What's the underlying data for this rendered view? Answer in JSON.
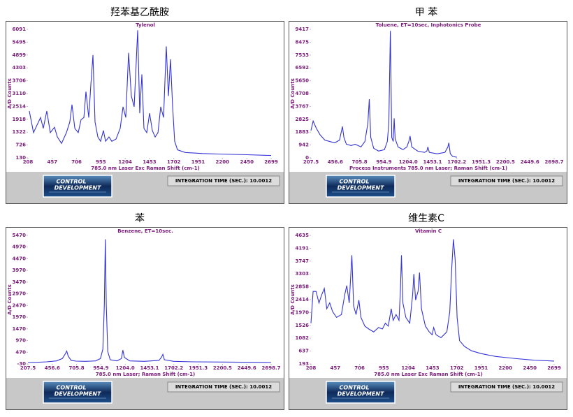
{
  "chart_data": [
    {
      "type": "line",
      "heading": "羟苯基乙酰胺",
      "title": "Tylenol",
      "ylabel": "A/D Counts",
      "xlabel": "785.0 nm Laser Exc    Raman Shift (cm-1)",
      "logo": [
        "CONTROL",
        "DEVELOPMENT"
      ],
      "footer": "INTEGRATION TIME (SEC.):  10.0012",
      "color": "#3434d6",
      "xlim": [
        208,
        2699
      ],
      "ylim": [
        130,
        6091
      ],
      "xticks": [
        208,
        457,
        706,
        955,
        1204,
        1453,
        1702,
        1951,
        2200,
        2450,
        2699
      ],
      "yticks": [
        130,
        726,
        1322,
        1918,
        2514,
        3110,
        3706,
        4303,
        4899,
        5495,
        6091
      ],
      "x": [
        222,
        265,
        337,
        365,
        401,
        437,
        480,
        509,
        552,
        602,
        637,
        659,
        688,
        723,
        752,
        781,
        802,
        831,
        852,
        874,
        895,
        924,
        952,
        981,
        1003,
        1038,
        1067,
        1110,
        1153,
        1182,
        1210,
        1239,
        1267,
        1296,
        1332,
        1353,
        1375,
        1396,
        1425,
        1454,
        1482,
        1511,
        1540,
        1568,
        1597,
        1625,
        1647,
        1668,
        1690,
        1711,
        1740,
        1819,
        1998,
        2212,
        2427,
        2699
      ],
      "values": [
        2300,
        1300,
        2000,
        1500,
        2300,
        1300,
        1550,
        1100,
        800,
        1300,
        1800,
        2600,
        1500,
        1300,
        1900,
        2000,
        3200,
        2000,
        3500,
        4900,
        1800,
        1100,
        900,
        1400,
        900,
        1100,
        900,
        1000,
        1500,
        2500,
        2000,
        5000,
        3000,
        2500,
        6050,
        2200,
        4000,
        1500,
        1300,
        2200,
        1400,
        1100,
        1300,
        2500,
        2000,
        5300,
        3000,
        4700,
        2500,
        900,
        500,
        380,
        330,
        300,
        280,
        240
      ]
    },
    {
      "type": "line",
      "heading": "甲  苯",
      "title": "Toluene, ET=10sec, Inphotonics Probe",
      "ylabel": "A/D Counts",
      "xlabel": "Process Instruments 785.0 nm Laser;   Raman Shift (cm-1)",
      "logo": [
        "CONTROL",
        "DEVELOPMENT"
      ],
      "footer": "INTEGRATION TIME (SEC.):  10.0012",
      "color": "#3434d6",
      "xlim": [
        207.5,
        2698.7
      ],
      "ylim": [
        0,
        9417
      ],
      "xticks": [
        207.5,
        456.6,
        705.8,
        954.9,
        {
          "value": 1204,
          "label": "1204.0"
        },
        1453.1,
        1702.2,
        1951.3,
        2200.5,
        2449.6,
        2698.7
      ],
      "yticks": [
        0,
        942,
        1883,
        2825,
        3767,
        4708,
        5650,
        6592,
        7533,
        8475,
        9417
      ],
      "x": [
        207.5,
        230,
        260,
        300,
        350,
        400,
        450,
        500,
        530,
        545,
        570,
        620,
        660,
        690,
        720,
        760,
        790,
        805,
        820,
        850,
        900,
        960,
        990,
        1005,
        1021,
        1035,
        1050,
        1060,
        1070,
        1100,
        1150,
        1190,
        1210,
        1223,
        1240,
        1300,
        1370,
        1395,
        1405,
        1420,
        1500,
        1580,
        1610,
        1620,
        1635,
        1660,
        1702
      ],
      "values": [
        2000,
        2700,
        2200,
        1700,
        1300,
        1200,
        1100,
        1300,
        2300,
        1500,
        1000,
        900,
        1000,
        900,
        800,
        1200,
        2500,
        4300,
        1500,
        700,
        500,
        600,
        1200,
        2500,
        9300,
        1500,
        1200,
        2900,
        1400,
        800,
        600,
        800,
        1200,
        1600,
        800,
        500,
        400,
        500,
        800,
        400,
        300,
        400,
        800,
        1100,
        300,
        100,
        50
      ]
    },
    {
      "type": "line",
      "heading": "苯",
      "title": "Benzene, ET=10sec.",
      "ylabel": "A/D Counts",
      "xlabel": "785.0 nm Laser;   Raman Shift (cm-1)",
      "logo": [
        "CONTROL",
        "DEVELOPMENT"
      ],
      "footer": "INTEGRATION TIME (SEC.):  10.0012",
      "color": "#3434d6",
      "xlim": [
        207.5,
        2698.7
      ],
      "ylim": [
        -30,
        5470
      ],
      "xticks": [
        207.5,
        456.6,
        705.8,
        954.9,
        {
          "value": 1204,
          "label": "1204.0"
        },
        1453.1,
        1702.2,
        1951.3,
        2200.5,
        2449.6,
        2698.7
      ],
      "yticks": [
        -30,
        470,
        970,
        1470,
        1970,
        2470,
        2970,
        3470,
        3970,
        4470,
        4970,
        5470
      ],
      "x": [
        207.5,
        300,
        400,
        500,
        560,
        590,
        605,
        620,
        650,
        700,
        800,
        900,
        950,
        975,
        990,
        1000,
        1010,
        1025,
        1050,
        1120,
        1165,
        1180,
        1195,
        1250,
        1400,
        1550,
        1575,
        1590,
        1605,
        1700,
        1900,
        2200,
        2500,
        2698.7
      ],
      "values": [
        30,
        40,
        60,
        100,
        200,
        400,
        520,
        300,
        120,
        90,
        80,
        100,
        200,
        600,
        2500,
        5300,
        2500,
        500,
        150,
        100,
        200,
        560,
        250,
        100,
        80,
        120,
        250,
        380,
        150,
        80,
        60,
        50,
        40,
        30
      ]
    },
    {
      "type": "line",
      "heading": "维生素C",
      "title": "Vitamin C",
      "ylabel": "A/D Counts",
      "xlabel": "785.0 nm Laser Exc    Raman Shift (cm-1)",
      "logo": [
        "CONTROL",
        "DEVELOPMENT"
      ],
      "footer": "INTEGRATION TIME (SEC.):  10.0012",
      "color": "#3434d6",
      "xlim": [
        208,
        2699
      ],
      "ylim": [
        193,
        4635
      ],
      "xticks": [
        208,
        457,
        706,
        955,
        1204,
        1453,
        1702,
        1951,
        2200,
        2450,
        2699
      ],
      "yticks": [
        193,
        637,
        1082,
        1526,
        1970,
        2414,
        2858,
        3303,
        3747,
        4191,
        4635
      ],
      "x": [
        208,
        230,
        260,
        290,
        320,
        345,
        370,
        400,
        430,
        470,
        520,
        555,
        575,
        600,
        627,
        645,
        670,
        699,
        720,
        760,
        800,
        850,
        900,
        940,
        970,
        1000,
        1030,
        1050,
        1080,
        1110,
        1125,
        1135,
        1150,
        1180,
        1220,
        1250,
        1262,
        1280,
        1305,
        1320,
        1340,
        1380,
        1420,
        1450,
        1465,
        1490,
        1540,
        1600,
        1630,
        1650,
        1667,
        1685,
        1705,
        1730,
        1780,
        1850,
        1950,
        2100,
        2300,
        2500,
        2699
      ],
      "values": [
        1600,
        2700,
        2700,
        2300,
        2600,
        2800,
        2100,
        2300,
        2000,
        1800,
        1900,
        2600,
        2900,
        2300,
        3950,
        2200,
        1900,
        2400,
        1800,
        1500,
        1400,
        1300,
        1450,
        1400,
        1600,
        1500,
        2100,
        1700,
        1900,
        1700,
        2800,
        3950,
        2300,
        1800,
        1600,
        2600,
        3300,
        2400,
        2700,
        3350,
        2100,
        1500,
        1300,
        1200,
        1450,
        1200,
        1100,
        1300,
        2000,
        3500,
        4500,
        3800,
        1800,
        1000,
        800,
        650,
        550,
        450,
        380,
        320,
        290
      ]
    }
  ]
}
